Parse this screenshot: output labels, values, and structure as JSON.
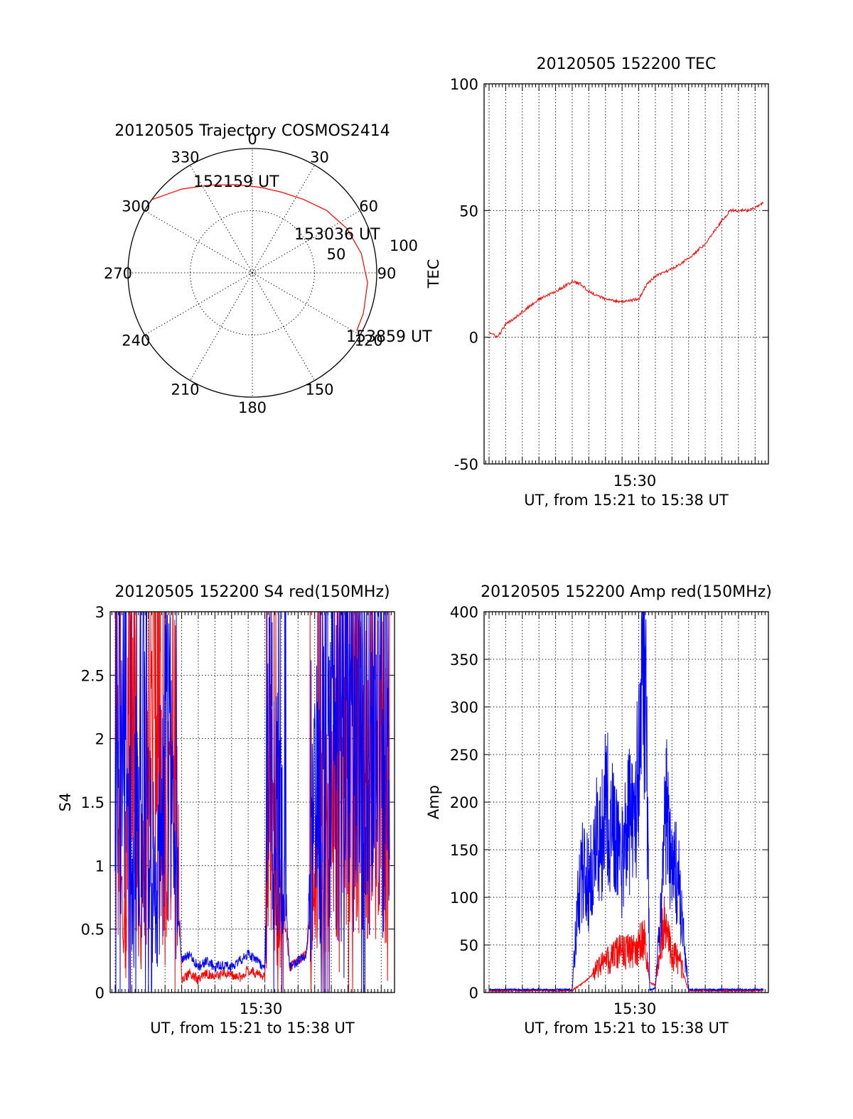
{
  "chart_data": [
    {
      "id": "trajectory",
      "type": "polar",
      "title": "20120505 Trajectory COSMOS2414",
      "radial_labels": [
        "50",
        "100"
      ],
      "angle_labels": [
        "0",
        "30",
        "60",
        "90",
        "120",
        "150",
        "180",
        "210",
        "240",
        "270",
        "300",
        "330"
      ],
      "series": [
        {
          "color": "#ff0000",
          "azimuth": [
            306,
            320,
            335,
            350,
            6,
            20,
            35,
            50,
            65,
            80,
            95,
            110,
            119
          ],
          "radius": [
            100,
            88,
            78,
            72,
            69,
            69,
            72,
            78,
            84,
            89,
            93,
            95,
            96
          ]
        }
      ],
      "annotations": [
        {
          "text": "152159 UT",
          "azimuth": 306,
          "radius": 100
        },
        {
          "text": "153036 UT",
          "azimuth": 74,
          "radius": 87
        },
        {
          "text": "153859 UT",
          "azimuth": 119,
          "radius": 96
        }
      ]
    },
    {
      "id": "tec",
      "type": "line",
      "title": "20120505 152200 TEC",
      "xlabel": "UT, from 15:21 to 15:38 UT",
      "ylabel": "TEC",
      "xlim": [
        "15:21:42",
        "15:38:48"
      ],
      "ylim": [
        -50,
        100
      ],
      "yticks": [
        "-50",
        "0",
        "50",
        "100"
      ],
      "xticks": [
        "15:30"
      ],
      "series": [
        {
          "color": "#ff0000",
          "x": [
            "15:22:00",
            "15:22:30",
            "15:23:00",
            "15:24:00",
            "15:25:00",
            "15:26:00",
            "15:27:00",
            "15:27:30",
            "15:28:00",
            "15:29:00",
            "15:30:00",
            "15:31:00",
            "15:31:30",
            "15:32:00",
            "15:33:00",
            "15:34:00",
            "15:35:00",
            "15:36:00",
            "15:36:30",
            "15:37:00",
            "15:37:30",
            "15:38:00",
            "15:38:30"
          ],
          "y": [
            2,
            0,
            5,
            10,
            15,
            18,
            22,
            21,
            18,
            15,
            14,
            15,
            21,
            24,
            27,
            31,
            37,
            46,
            50,
            50,
            50,
            51,
            53
          ]
        }
      ]
    },
    {
      "id": "s4",
      "type": "line",
      "title": "20120505 152200 S4 red(150MHz)",
      "xlabel": "UT, from 15:21 to 15:38 UT",
      "ylabel": "S4",
      "xlim": [
        "15:21:42",
        "15:38:48"
      ],
      "ylim": [
        0,
        3
      ],
      "yticks": [
        "0",
        "0.5",
        "1",
        "1.5",
        "2",
        "2.5",
        "3"
      ],
      "xticks": [
        "15:30"
      ],
      "series": [
        {
          "color": "#ff0000",
          "x": [
            "15:22:00",
            "15:22:30",
            "15:23:00",
            "15:23:30",
            "15:24:00",
            "15:24:30",
            "15:25:00",
            "15:25:30",
            "15:26:00",
            "15:26:30",
            "15:27:00",
            "15:27:30",
            "15:28:00",
            "15:28:30",
            "15:29:00",
            "15:29:30",
            "15:30:00",
            "15:30:30",
            "15:31:00",
            "15:31:15",
            "15:31:30",
            "15:32:00",
            "15:32:30",
            "15:33:00",
            "15:33:30",
            "15:34:00",
            "15:34:30",
            "15:35:00",
            "15:35:30",
            "15:36:00",
            "15:36:30",
            "15:37:00",
            "15:37:30",
            "15:38:00",
            "15:38:30"
          ],
          "y": [
            2.2,
            0.3,
            2.8,
            0.5,
            1.9,
            2.9,
            0.8,
            2.3,
            0.1,
            0.15,
            0.1,
            0.15,
            0.12,
            0.15,
            0.13,
            0.12,
            0.18,
            0.15,
            0.12,
            1.8,
            1.1,
            0.8,
            0.2,
            0.25,
            0.3,
            1.0,
            1.3,
            1.5,
            2.2,
            1.8,
            2.4,
            1.5,
            2.1,
            1.6,
            2.0
          ]
        },
        {
          "color": "#0000ff",
          "x": [
            "15:22:00",
            "15:22:30",
            "15:23:00",
            "15:23:30",
            "15:24:00",
            "15:24:30",
            "15:25:00",
            "15:25:30",
            "15:26:00",
            "15:26:30",
            "15:27:00",
            "15:27:30",
            "15:28:00",
            "15:28:30",
            "15:29:00",
            "15:29:30",
            "15:30:00",
            "15:30:30",
            "15:31:00",
            "15:31:15",
            "15:31:30",
            "15:32:00",
            "15:32:30",
            "15:33:00",
            "15:33:30",
            "15:34:00",
            "15:34:30",
            "15:35:00",
            "15:35:30",
            "15:36:00",
            "15:36:30",
            "15:37:00",
            "15:37:30",
            "15:38:00",
            "15:38:30"
          ],
          "y": [
            1.4,
            2.6,
            0.7,
            2.2,
            1.5,
            0.6,
            2.5,
            1.2,
            0.25,
            0.3,
            0.2,
            0.25,
            0.2,
            0.22,
            0.2,
            0.25,
            0.3,
            0.25,
            0.2,
            2.5,
            1.5,
            1.2,
            0.2,
            0.25,
            0.3,
            1.4,
            2.0,
            2.4,
            1.7,
            2.6,
            2.0,
            2.3,
            1.8,
            2.1,
            1.7
          ]
        }
      ]
    },
    {
      "id": "amp",
      "type": "line",
      "title": "20120505 152200 Amp red(150MHz)",
      "xlabel": "UT, from 15:21 to 15:38 UT",
      "ylabel": "Amp",
      "xlim": [
        "15:21:42",
        "15:38:48"
      ],
      "ylim": [
        0,
        400
      ],
      "yticks": [
        "0",
        "50",
        "100",
        "150",
        "200",
        "250",
        "300",
        "350",
        "400"
      ],
      "xticks": [
        "15:30"
      ],
      "series": [
        {
          "color": "#ff0000",
          "x": [
            "15:22:00",
            "15:24:00",
            "15:26:00",
            "15:27:00",
            "15:27:30",
            "15:28:00",
            "15:28:30",
            "15:29:00",
            "15:29:30",
            "15:30:00",
            "15:30:30",
            "15:31:00",
            "15:31:20",
            "15:31:40",
            "15:32:00",
            "15:32:30",
            "15:33:00",
            "15:33:30",
            "15:34:00",
            "15:36:00",
            "15:38:30"
          ],
          "y": [
            2,
            2,
            2,
            2,
            8,
            15,
            25,
            32,
            38,
            45,
            42,
            50,
            55,
            10,
            8,
            75,
            40,
            30,
            2,
            2,
            2
          ]
        },
        {
          "color": "#0000ff",
          "x": [
            "15:22:00",
            "15:24:00",
            "15:26:00",
            "15:27:00",
            "15:27:20",
            "15:27:40",
            "15:28:00",
            "15:28:20",
            "15:28:40",
            "15:29:00",
            "15:29:20",
            "15:29:40",
            "15:30:00",
            "15:30:20",
            "15:30:40",
            "15:31:00",
            "15:31:10",
            "15:31:20",
            "15:31:30",
            "15:31:40",
            "15:32:00",
            "15:32:20",
            "15:32:40",
            "15:33:00",
            "15:33:20",
            "15:33:40",
            "15:34:00",
            "15:36:00",
            "15:38:30"
          ],
          "y": [
            3,
            3,
            3,
            3,
            95,
            140,
            110,
            160,
            150,
            215,
            165,
            190,
            135,
            180,
            175,
            240,
            320,
            362,
            230,
            3,
            5,
            85,
            200,
            120,
            130,
            60,
            3,
            3,
            3
          ]
        }
      ]
    }
  ]
}
